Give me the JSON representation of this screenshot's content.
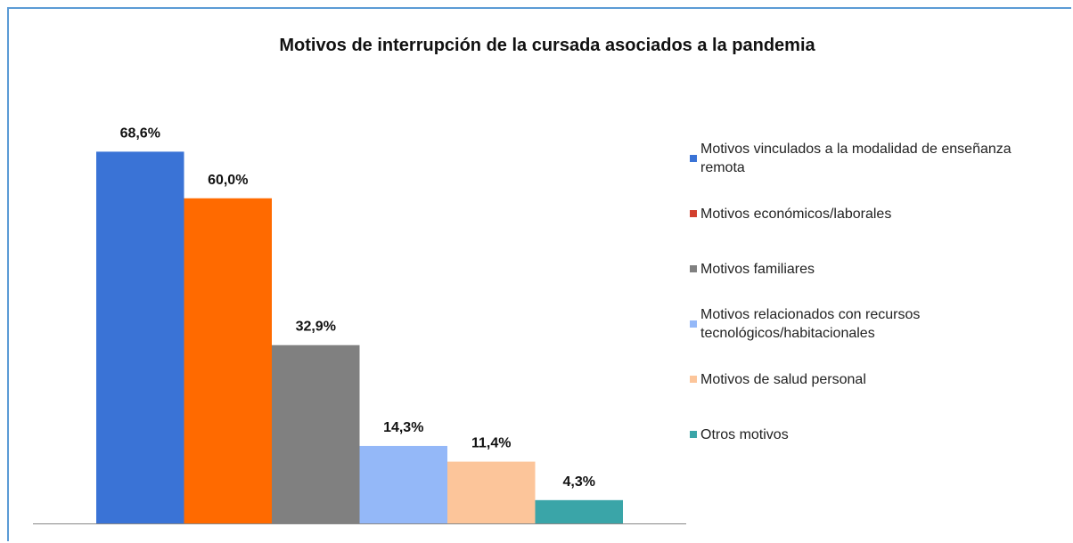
{
  "chart_data": {
    "type": "bar",
    "title": "Motivos de interrupción de la cursada asociados a la pandemia",
    "ylim": [
      0,
      80
    ],
    "series": [
      {
        "name": "Motivos vinculados a la modalidad de enseñanza remota",
        "color": "#3a73d6",
        "legend_color": "#3a73d6",
        "values": [
          68.6
        ],
        "value_labels": [
          "68,6%"
        ]
      },
      {
        "name": "Motivos económicos/laborales",
        "color": "#ff6a00",
        "legend_color": "#d23f2e",
        "values": [
          60.0
        ],
        "value_labels": [
          "60,0%"
        ]
      },
      {
        "name": "Motivos familiares",
        "color": "#808080",
        "legend_color": "#808080",
        "values": [
          32.9
        ],
        "value_labels": [
          "32,9%"
        ]
      },
      {
        "name": "Motivos relacionados con recursos tecnológicos/habitacionales",
        "color": "#94b8f8",
        "legend_color": "#94b8f8",
        "values": [
          14.3
        ],
        "value_labels": [
          "14,3%"
        ]
      },
      {
        "name": "Motivos de salud personal",
        "color": "#fcc59a",
        "legend_color": "#fcc59a",
        "values": [
          11.4
        ],
        "value_labels": [
          "11,4%"
        ]
      },
      {
        "name": "Otros motivos",
        "color": "#3aa5a8",
        "legend_color": "#3aa5a8",
        "values": [
          4.3
        ],
        "value_labels": [
          "4,3%"
        ]
      }
    ]
  }
}
